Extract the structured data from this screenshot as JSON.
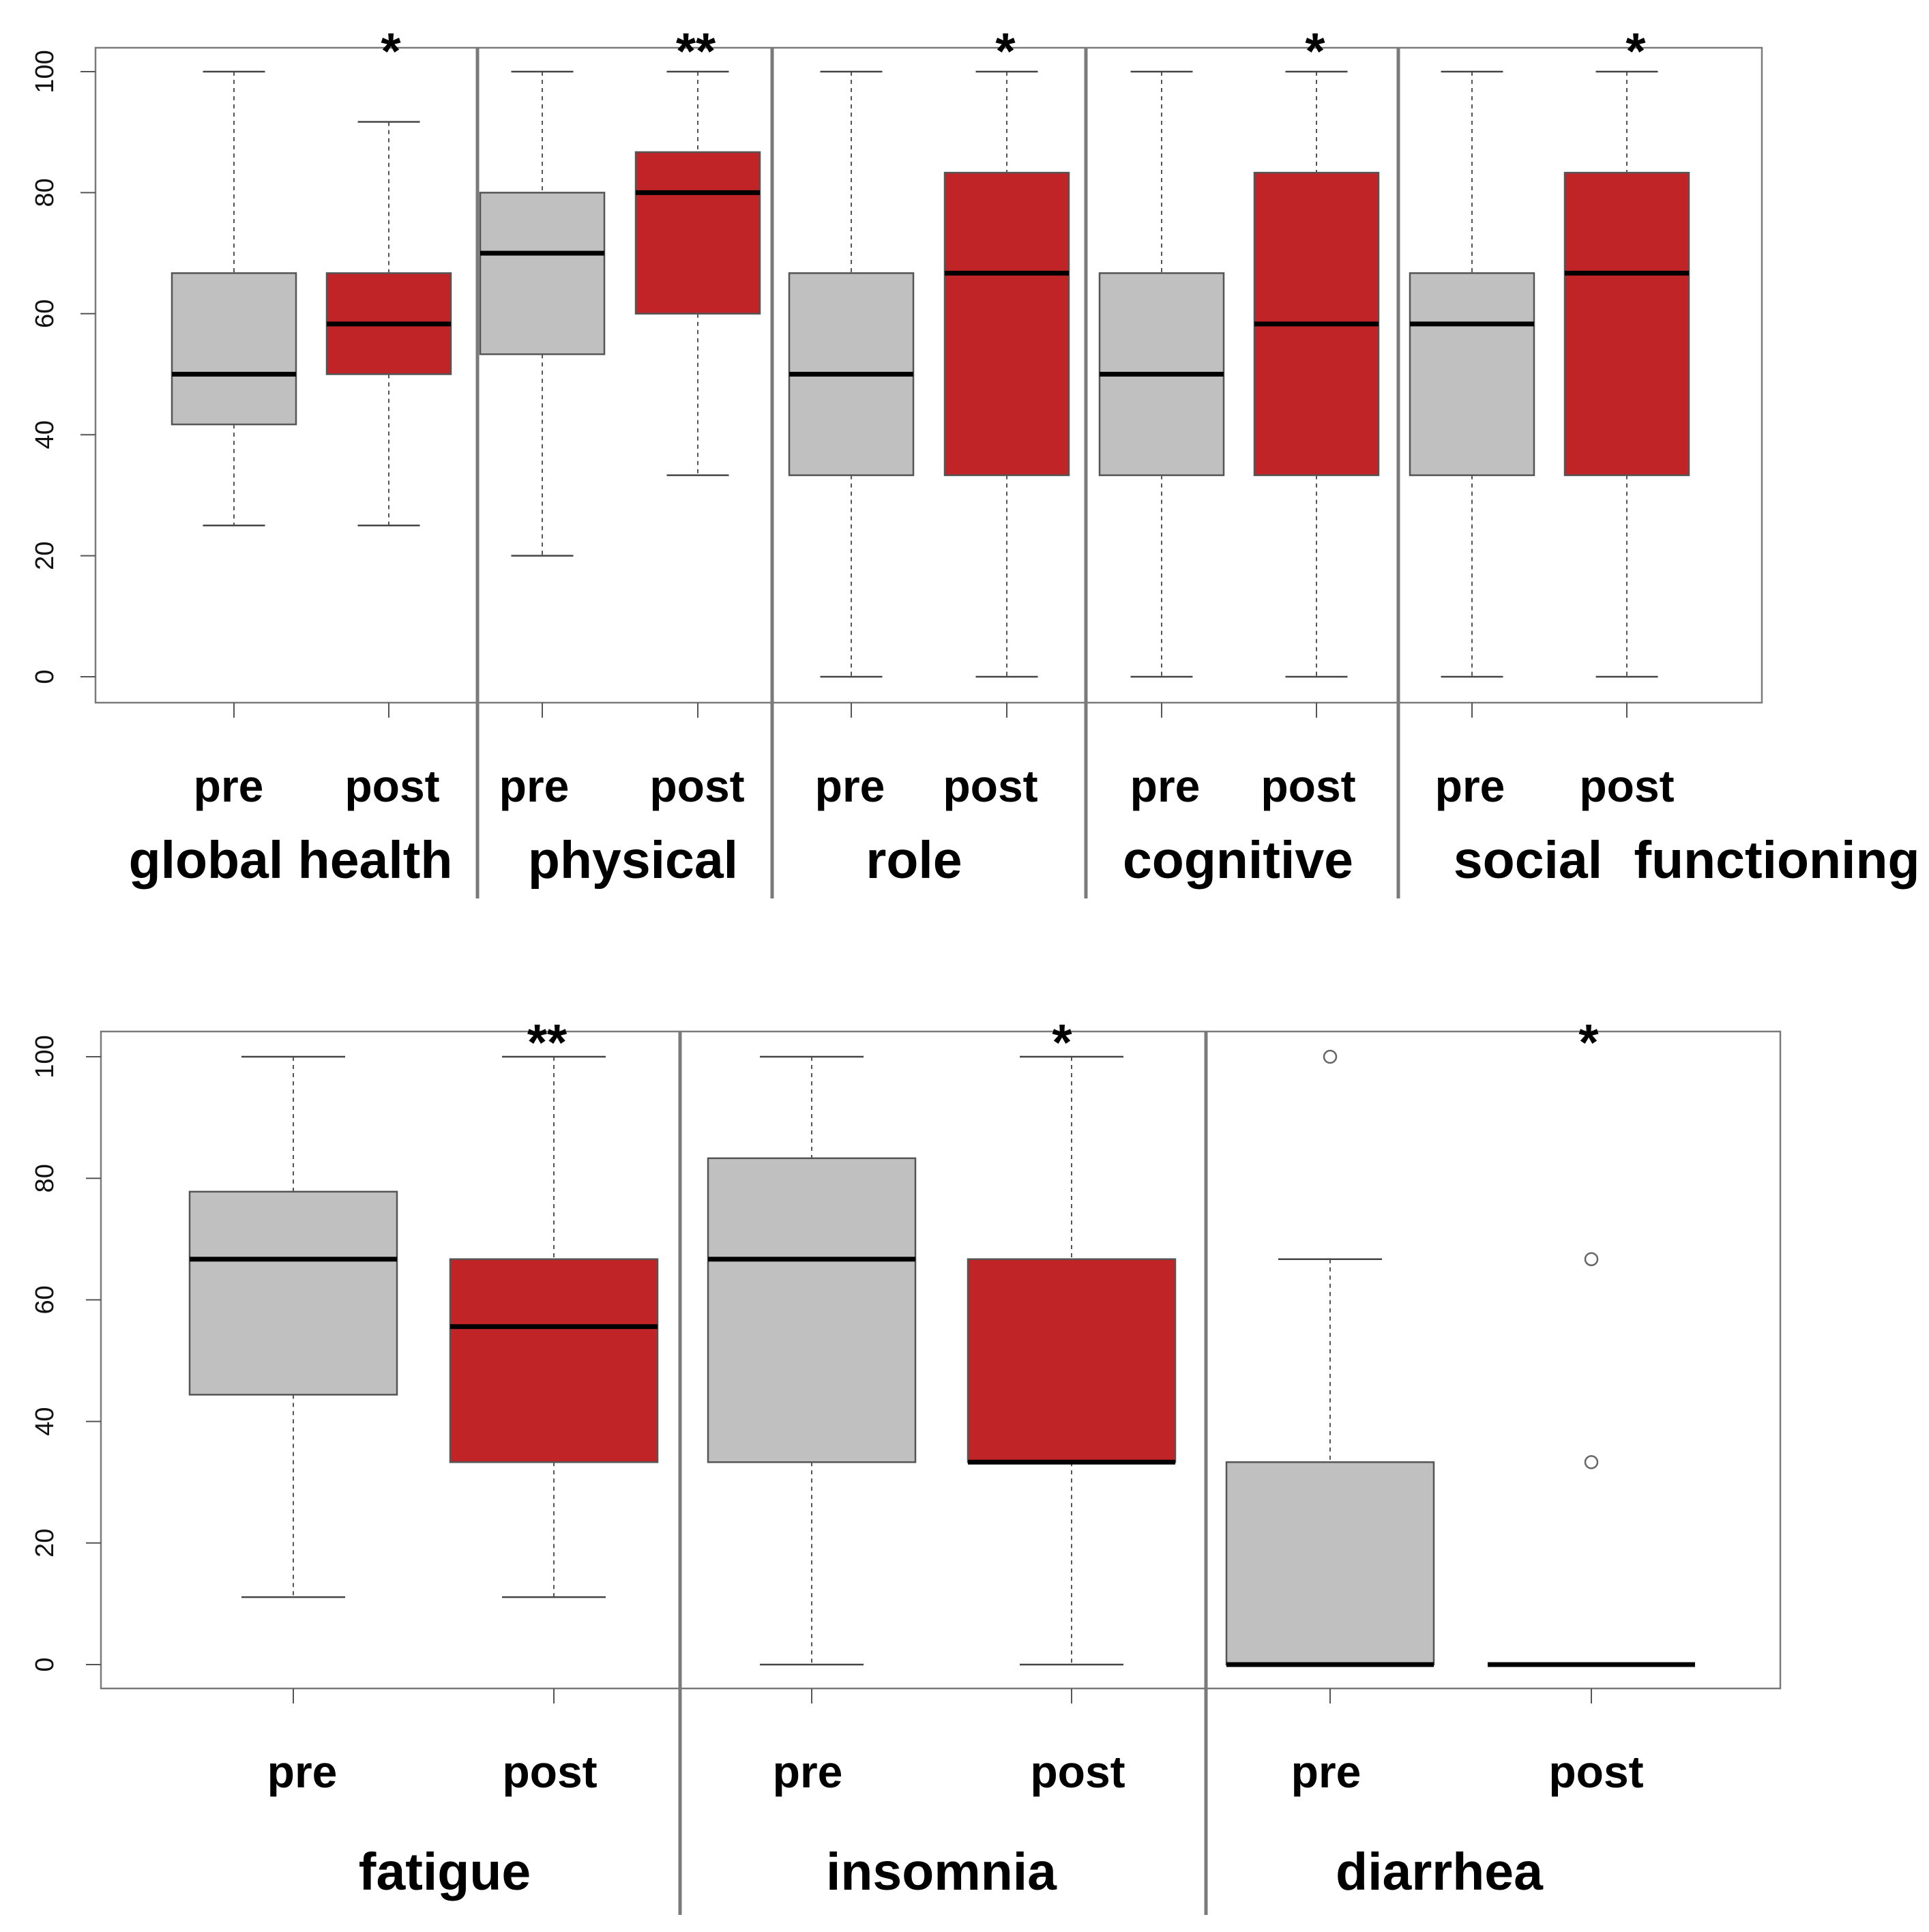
{
  "chart_data": [
    {
      "type": "box",
      "title": "",
      "ylim": [
        0,
        100
      ],
      "yticks": [
        0,
        20,
        40,
        60,
        80,
        100
      ],
      "groups": [
        "pre",
        "post"
      ],
      "colors": {
        "pre": "#c0c0c0",
        "post": "#c12426"
      },
      "categories": [
        {
          "name": "global health",
          "significance": "*",
          "pre": {
            "min": 25,
            "q1": 41.7,
            "median": 50,
            "q3": 66.7,
            "max": 100
          },
          "post": {
            "min": 25,
            "q1": 50,
            "median": 58.3,
            "q3": 66.7,
            "max": 91.7
          }
        },
        {
          "name": "physical",
          "significance": "**",
          "pre": {
            "min": 20,
            "q1": 53.3,
            "median": 70,
            "q3": 80,
            "max": 100
          },
          "post": {
            "min": 33.3,
            "q1": 60,
            "median": 80,
            "q3": 86.7,
            "max": 100
          }
        },
        {
          "name": "role",
          "significance": "*",
          "pre": {
            "min": 0,
            "q1": 33.3,
            "median": 50,
            "q3": 66.7,
            "max": 100
          },
          "post": {
            "min": 0,
            "q1": 33.3,
            "median": 66.7,
            "q3": 83.3,
            "max": 100
          }
        },
        {
          "name": "cognitive",
          "significance": "*",
          "pre": {
            "min": 0,
            "q1": 33.3,
            "median": 50,
            "q3": 66.7,
            "max": 100
          },
          "post": {
            "min": 0,
            "q1": 33.3,
            "median": 58.3,
            "q3": 83.3,
            "max": 100
          }
        },
        {
          "name": "social",
          "significance": "*",
          "pre": {
            "min": 0,
            "q1": 33.3,
            "median": 58.3,
            "q3": 66.7,
            "max": 100
          },
          "post": {
            "min": 0,
            "q1": 33.3,
            "median": 66.7,
            "q3": 83.3,
            "max": 100
          }
        }
      ],
      "suffix_label": "functioning"
    },
    {
      "type": "box",
      "title": "",
      "ylim": [
        0,
        100
      ],
      "yticks": [
        0,
        20,
        40,
        60,
        80,
        100
      ],
      "groups": [
        "pre",
        "post"
      ],
      "colors": {
        "pre": "#c0c0c0",
        "post": "#c12426"
      },
      "categories": [
        {
          "name": "fatigue",
          "significance": "**",
          "pre": {
            "min": 11.1,
            "q1": 44.4,
            "median": 66.7,
            "q3": 77.8,
            "max": 100
          },
          "post": {
            "min": 11.1,
            "q1": 33.3,
            "median": 55.6,
            "q3": 66.7,
            "max": 100
          }
        },
        {
          "name": "insomnia",
          "significance": "*",
          "pre": {
            "min": 0,
            "q1": 33.3,
            "median": 66.7,
            "q3": 83.3,
            "max": 100
          },
          "post": {
            "min": 0,
            "q1": 33.3,
            "median": 33.3,
            "q3": 66.7,
            "max": 100
          }
        },
        {
          "name": "diarrhea",
          "significance": "*",
          "pre": {
            "min": 0,
            "q1": 0,
            "median": 0,
            "q3": 33.3,
            "max": 66.7,
            "outliers": [
              100
            ]
          },
          "post": {
            "min": 0,
            "q1": 0,
            "median": 0,
            "q3": 0,
            "max": 0,
            "outliers": [
              66.7,
              33.3
            ]
          }
        }
      ]
    }
  ]
}
